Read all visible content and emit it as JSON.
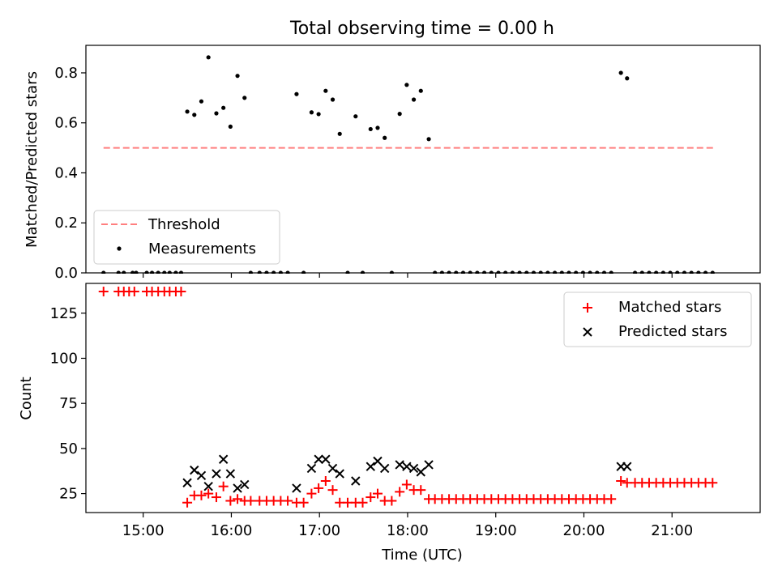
{
  "figure_title": "Total observing time = 0.00 h",
  "chart_data": [
    {
      "type": "scatter",
      "ylabel": "Matched/Predicted stars",
      "xlabel": "",
      "xlim": [
        14.35,
        22.0
      ],
      "ylim": [
        0.0,
        0.91
      ],
      "yticks": [
        0.0,
        0.2,
        0.4,
        0.6,
        0.8
      ],
      "ytick_labels": [
        "0.0",
        "0.2",
        "0.4",
        "0.6",
        "0.8"
      ],
      "legend_position": "lower-left",
      "threshold": {
        "name": "Threshold",
        "y": 0.5,
        "x_range": [
          14.55,
          21.5
        ],
        "color": "#ff7f7f"
      },
      "series": [
        {
          "name": "Measurements",
          "color": "#000000",
          "points": [
            [
              14.55,
              0.0
            ],
            [
              14.72,
              0.0
            ],
            [
              14.78,
              0.0
            ],
            [
              14.88,
              0.0
            ],
            [
              14.92,
              0.0
            ],
            [
              15.04,
              0.0
            ],
            [
              15.1,
              0.0
            ],
            [
              15.17,
              0.0
            ],
            [
              15.24,
              0.0
            ],
            [
              15.3,
              0.0
            ],
            [
              15.37,
              0.0
            ],
            [
              15.43,
              0.0
            ],
            [
              15.5,
              0.645
            ],
            [
              15.58,
              0.632
            ],
            [
              15.66,
              0.686
            ],
            [
              15.74,
              0.862
            ],
            [
              15.83,
              0.638
            ],
            [
              15.91,
              0.66
            ],
            [
              15.99,
              0.585
            ],
            [
              16.07,
              0.788
            ],
            [
              16.15,
              0.7
            ],
            [
              16.22,
              0.0
            ],
            [
              16.32,
              0.0
            ],
            [
              16.4,
              0.0
            ],
            [
              16.48,
              0.0
            ],
            [
              16.56,
              0.0
            ],
            [
              16.64,
              0.0
            ],
            [
              16.74,
              0.715
            ],
            [
              16.82,
              0.0
            ],
            [
              16.91,
              0.642
            ],
            [
              16.99,
              0.635
            ],
            [
              17.07,
              0.728
            ],
            [
              17.15,
              0.693
            ],
            [
              17.23,
              0.556
            ],
            [
              17.32,
              0.0
            ],
            [
              17.41,
              0.626
            ],
            [
              17.49,
              0.0
            ],
            [
              17.58,
              0.575
            ],
            [
              17.66,
              0.58
            ],
            [
              17.74,
              0.54
            ],
            [
              17.82,
              0.0
            ],
            [
              17.91,
              0.636
            ],
            [
              17.99,
              0.752
            ],
            [
              18.07,
              0.693
            ],
            [
              18.15,
              0.728
            ],
            [
              18.24,
              0.535
            ],
            [
              18.31,
              0.0
            ],
            [
              18.39,
              0.0
            ],
            [
              18.47,
              0.0
            ],
            [
              18.55,
              0.0
            ],
            [
              18.63,
              0.0
            ],
            [
              18.71,
              0.0
            ],
            [
              18.79,
              0.0
            ],
            [
              18.87,
              0.0
            ],
            [
              18.95,
              0.0
            ],
            [
              19.03,
              0.0
            ],
            [
              19.11,
              0.0
            ],
            [
              19.19,
              0.0
            ],
            [
              19.27,
              0.0
            ],
            [
              19.35,
              0.0
            ],
            [
              19.43,
              0.0
            ],
            [
              19.51,
              0.0
            ],
            [
              19.59,
              0.0
            ],
            [
              19.67,
              0.0
            ],
            [
              19.75,
              0.0
            ],
            [
              19.83,
              0.0
            ],
            [
              19.91,
              0.0
            ],
            [
              19.99,
              0.0
            ],
            [
              20.07,
              0.0
            ],
            [
              20.15,
              0.0
            ],
            [
              20.23,
              0.0
            ],
            [
              20.31,
              0.0
            ],
            [
              20.42,
              0.8
            ],
            [
              20.49,
              0.778
            ],
            [
              20.58,
              0.0
            ],
            [
              20.66,
              0.0
            ],
            [
              20.74,
              0.0
            ],
            [
              20.82,
              0.0
            ],
            [
              20.9,
              0.0
            ],
            [
              20.98,
              0.0
            ],
            [
              21.06,
              0.0
            ],
            [
              21.14,
              0.0
            ],
            [
              21.22,
              0.0
            ],
            [
              21.3,
              0.0
            ],
            [
              21.38,
              0.0
            ],
            [
              21.46,
              0.0
            ]
          ]
        }
      ]
    },
    {
      "type": "scatter",
      "ylabel": "Count",
      "xlabel": "Time (UTC)",
      "xlim": [
        14.35,
        22.0
      ],
      "ylim": [
        14.5,
        141.5
      ],
      "yticks": [
        25,
        50,
        75,
        100,
        125
      ],
      "ytick_labels": [
        "25",
        "50",
        "75",
        "100",
        "125"
      ],
      "xticks": [
        15,
        16,
        17,
        18,
        19,
        20,
        21
      ],
      "xtick_labels": [
        "15:00",
        "16:00",
        "17:00",
        "18:00",
        "19:00",
        "20:00",
        "21:00"
      ],
      "legend_position": "upper-right",
      "series": [
        {
          "name": "Matched stars",
          "marker": "plus",
          "color": "#ff0000",
          "points": [
            [
              14.55,
              137
            ],
            [
              14.72,
              137
            ],
            [
              14.78,
              137
            ],
            [
              14.84,
              137
            ],
            [
              14.9,
              137
            ],
            [
              15.04,
              137
            ],
            [
              15.1,
              137
            ],
            [
              15.17,
              137
            ],
            [
              15.24,
              137
            ],
            [
              15.3,
              137
            ],
            [
              15.37,
              137
            ],
            [
              15.43,
              137
            ],
            [
              15.5,
              20
            ],
            [
              15.58,
              24
            ],
            [
              15.66,
              24
            ],
            [
              15.74,
              25
            ],
            [
              15.83,
              23
            ],
            [
              15.91,
              29
            ],
            [
              15.99,
              21
            ],
            [
              16.07,
              22
            ],
            [
              16.15,
              21
            ],
            [
              16.22,
              21
            ],
            [
              16.32,
              21
            ],
            [
              16.4,
              21
            ],
            [
              16.48,
              21
            ],
            [
              16.56,
              21
            ],
            [
              16.64,
              21
            ],
            [
              16.74,
              20
            ],
            [
              16.82,
              20
            ],
            [
              16.91,
              25
            ],
            [
              16.99,
              28
            ],
            [
              17.07,
              32
            ],
            [
              17.15,
              27
            ],
            [
              17.23,
              20
            ],
            [
              17.32,
              20
            ],
            [
              17.41,
              20
            ],
            [
              17.49,
              20
            ],
            [
              17.58,
              23
            ],
            [
              17.66,
              25
            ],
            [
              17.74,
              21
            ],
            [
              17.82,
              21
            ],
            [
              17.91,
              26
            ],
            [
              17.99,
              30
            ],
            [
              18.07,
              27
            ],
            [
              18.15,
              27
            ],
            [
              18.24,
              22
            ],
            [
              18.31,
              22
            ],
            [
              18.39,
              22
            ],
            [
              18.47,
              22
            ],
            [
              18.55,
              22
            ],
            [
              18.63,
              22
            ],
            [
              18.71,
              22
            ],
            [
              18.79,
              22
            ],
            [
              18.87,
              22
            ],
            [
              18.95,
              22
            ],
            [
              19.03,
              22
            ],
            [
              19.11,
              22
            ],
            [
              19.19,
              22
            ],
            [
              19.27,
              22
            ],
            [
              19.35,
              22
            ],
            [
              19.43,
              22
            ],
            [
              19.51,
              22
            ],
            [
              19.59,
              22
            ],
            [
              19.67,
              22
            ],
            [
              19.75,
              22
            ],
            [
              19.83,
              22
            ],
            [
              19.91,
              22
            ],
            [
              19.99,
              22
            ],
            [
              20.07,
              22
            ],
            [
              20.15,
              22
            ],
            [
              20.23,
              22
            ],
            [
              20.31,
              22
            ],
            [
              20.42,
              32
            ],
            [
              20.49,
              31
            ],
            [
              20.58,
              31
            ],
            [
              20.66,
              31
            ],
            [
              20.74,
              31
            ],
            [
              20.82,
              31
            ],
            [
              20.9,
              31
            ],
            [
              20.98,
              31
            ],
            [
              21.06,
              31
            ],
            [
              21.14,
              31
            ],
            [
              21.22,
              31
            ],
            [
              21.3,
              31
            ],
            [
              21.38,
              31
            ],
            [
              21.46,
              31
            ]
          ]
        },
        {
          "name": "Predicted stars",
          "marker": "x",
          "color": "#000000",
          "points": [
            [
              15.5,
              31
            ],
            [
              15.58,
              38
            ],
            [
              15.66,
              35
            ],
            [
              15.74,
              29
            ],
            [
              15.83,
              36
            ],
            [
              15.91,
              44
            ],
            [
              15.99,
              36
            ],
            [
              16.07,
              28
            ],
            [
              16.15,
              30
            ],
            [
              16.74,
              28
            ],
            [
              16.91,
              39
            ],
            [
              16.99,
              44
            ],
            [
              17.07,
              44
            ],
            [
              17.15,
              39
            ],
            [
              17.23,
              36
            ],
            [
              17.41,
              32
            ],
            [
              17.58,
              40
            ],
            [
              17.66,
              43
            ],
            [
              17.74,
              39
            ],
            [
              17.91,
              41
            ],
            [
              17.99,
              40
            ],
            [
              18.07,
              39
            ],
            [
              18.15,
              37
            ],
            [
              18.24,
              41
            ],
            [
              20.42,
              40
            ],
            [
              20.49,
              40
            ]
          ]
        }
      ]
    }
  ]
}
